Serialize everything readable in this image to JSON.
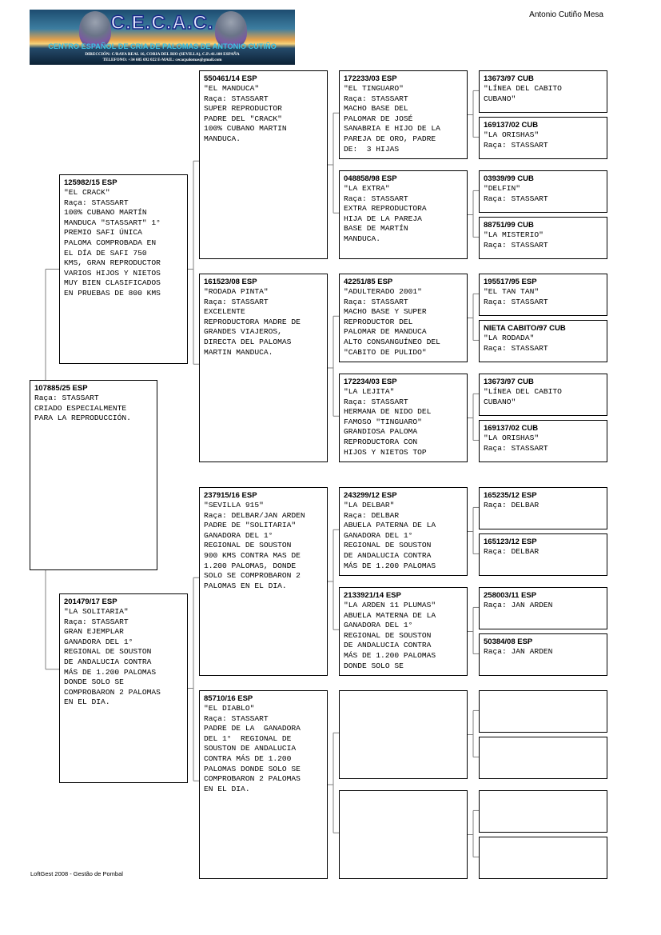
{
  "header": {
    "logo": {
      "title": "C.E.C.A.C.",
      "subtitle": "CENTRO ESPAÑOL DE CRIA DE PALOMAS DE ANTONIO CUTIÑO",
      "address": "DIRECCIÓN: C/RAYA REAL 16, CORIA DEL RIO (SEVILLA), C.P.:41.100 ESPAÑA",
      "contact": "TELEFONO: +34 685 692 022     E-MAIL: cecacpalomas@gmail.com"
    },
    "owner": "Antonio Cutiño Mesa"
  },
  "footer": "LoftGest 2008 - Gestão de Pombal",
  "pedigree": {
    "subject": {
      "ring": "107885/25 ESP",
      "lines": [
        "Raça: STASSART",
        "CRIADO ESPECIALMENTE",
        "PARA LA REPRODUCCIÓN."
      ]
    },
    "gen1": [
      {
        "ring": "125982/15 ESP",
        "lines": [
          "\"EL CRACK\"",
          "Raça: STASSART",
          "100% CUBANO MARTÍN",
          "MANDUCA \"STASSART\" 1°",
          "PREMIO SAFI ÚNICA",
          "PALOMA COMPROBADA EN",
          "EL DÍA DE SAFI 750",
          "KMS, GRAN REPRODUCTOR",
          "VARIOS HIJOS Y NIETOS",
          "MUY BIEN CLASIFICADOS",
          "EN PRUEBAS DE 800 KMS"
        ]
      },
      {
        "ring": "201479/17 ESP",
        "lines": [
          "\"LA SOLITARIA\"",
          "Raça: STASSART",
          "GRAN EJEMPLAR",
          "GANADORA DEL 1°",
          "REGIONAL DE SOUSTON",
          "DE ANDALUCIA CONTRA",
          "MÁS DE 1.200 PALOMAS",
          "DONDE SOLO SE",
          "COMPROBARON 2 PALOMAS",
          "EN EL DIA."
        ]
      }
    ],
    "gen2": [
      {
        "ring": "550461/14 ESP",
        "lines": [
          "\"EL MANDUCA\"",
          "Raça: STASSART",
          "SUPER REPRODUCTOR",
          "PADRE DEL \"CRACK\"",
          "100% CUBANO MARTIN",
          "MANDUCA."
        ]
      },
      {
        "ring": "161523/08 ESP",
        "lines": [
          "\"RODADA PINTA\"",
          "Raça: STASSART",
          "EXCELENTE",
          "REPRODUCTORA MADRE DE",
          "GRANDES VIAJEROS,",
          "DIRECTA DEL PALOMAS",
          "MARTIN MANDUCA."
        ]
      },
      {
        "ring": "237915/16 ESP",
        "lines": [
          "\"SEVILLA 915\"",
          "Raça: DELBAR/JAN ARDEN",
          "PADRE DE \"SOLITARIA\"",
          "GANADORA DEL 1°",
          "REGIONAL DE SOUSTON",
          "900 KMS CONTRA MAS DE",
          "1.200 PALOMAS, DONDE",
          "SOLO SE COMPROBARON 2",
          "PALOMAS EN EL DIA."
        ]
      },
      {
        "ring": "85710/16 ESP",
        "lines": [
          "\"EL DIABLO\"",
          "Raça: STASSART",
          "PADRE DE LA  GANADORA",
          "DEL 1°  REGIONAL DE",
          "SOUSTON DE ANDALUCIA",
          "CONTRA MÁS DE 1.200",
          "PALOMAS DONDE SOLO SE",
          "COMPROBARON 2 PALOMAS",
          "EN EL DIA."
        ]
      }
    ],
    "gen3": [
      {
        "ring": "172233/03 ESP",
        "lines": [
          "\"EL TINGUARO\"",
          "Raça: STASSART",
          "MACHO BASE DEL",
          "PALOMAR DE JOSÉ",
          "SANABRIA E HIJO DE LA",
          "PAREJA DE ORO, PADRE",
          "DE:  3 HIJAS"
        ]
      },
      {
        "ring": "048858/98 ESP",
        "lines": [
          "\"LA EXTRA\"",
          "Raça: STASSART",
          "EXTRA REPRODUCTORA",
          "HIJA DE LA PAREJA",
          "BASE DE MARTÍN",
          "MANDUCA."
        ]
      },
      {
        "ring": "42251/85 ESP",
        "lines": [
          "\"ADULTERADO 2001\"",
          "Raça: STASSART",
          "MACHO BASE Y SUPER",
          "REPRODUCTOR DEL",
          "PALOMAR DE MANDUCA",
          "ALTO CONSANGUÍNEO DEL",
          "\"CABITO DE PULIDO\""
        ]
      },
      {
        "ring": "172234/03 ESP",
        "lines": [
          "\"LA LEJITA\"",
          "Raça: STASSART",
          "HERMANA DE NIDO DEL",
          "FAMOSO \"TINGUARO\"",
          "GRANDIOSA PALOMA",
          "REPRODUCTORA CON",
          "HIJOS Y NIETOS TOP"
        ]
      },
      {
        "ring": "243299/12 ESP",
        "lines": [
          "\"LA DELBAR\"",
          "Raça: DELBAR",
          "ABUELA PATERNA DE LA",
          "GANADORA DEL 1°",
          "REGIONAL DE SOUSTON",
          "DE ANDALUCIA CONTRA",
          "MÁS DE 1.200 PALOMAS"
        ]
      },
      {
        "ring": "2133921/14 ESP",
        "lines": [
          "\"LA ARDEN 11 PLUMAS\"",
          "ABUELA MATERNA DE LA",
          "GANADORA DEL 1°",
          "REGIONAL DE SOUSTON",
          "DE ANDALUCIA CONTRA",
          "MÁS DE 1.200 PALOMAS",
          "DONDE SOLO SE"
        ]
      },
      {
        "ring": "",
        "lines": []
      },
      {
        "ring": "",
        "lines": []
      }
    ],
    "gen4": [
      {
        "ring": "13673/97 CUB",
        "lines": [
          "\"LÍNEA DEL CABITO",
          "CUBANO\""
        ]
      },
      {
        "ring": "169137/02 CUB",
        "lines": [
          "\"LA ORISHAS\"",
          "Raça: STASSART"
        ]
      },
      {
        "ring": "03939/99 CUB",
        "lines": [
          "\"DELFIN\"",
          "Raça: STASSART"
        ]
      },
      {
        "ring": "88751/99 CUB",
        "lines": [
          "\"LA MISTERIO\"",
          "Raça: STASSART"
        ]
      },
      {
        "ring": "195517/95 ESP",
        "lines": [
          "\"EL TAN TAN\"",
          "Raça: STASSART"
        ]
      },
      {
        "ring": "NIETA CABITO/97 CUB",
        "lines": [
          "\"LA RODADA\"",
          "Raça: STASSART"
        ]
      },
      {
        "ring": "13673/97 CUB",
        "lines": [
          "\"LÍNEA DEL CABITO",
          "CUBANO\""
        ]
      },
      {
        "ring": "169137/02 CUB",
        "lines": [
          "\"LA ORISHAS\"",
          "Raça: STASSART"
        ]
      },
      {
        "ring": "165235/12 ESP",
        "lines": [
          "Raça: DELBAR"
        ]
      },
      {
        "ring": "165123/12 ESP",
        "lines": [
          "Raça: DELBAR"
        ]
      },
      {
        "ring": "258003/11 ESP",
        "lines": [
          "Raça: JAN ARDEN"
        ]
      },
      {
        "ring": "50384/08 ESP",
        "lines": [
          "Raça: JAN ARDEN"
        ]
      },
      {
        "ring": "",
        "lines": []
      },
      {
        "ring": "",
        "lines": []
      },
      {
        "ring": "",
        "lines": []
      },
      {
        "ring": "",
        "lines": []
      }
    ]
  }
}
